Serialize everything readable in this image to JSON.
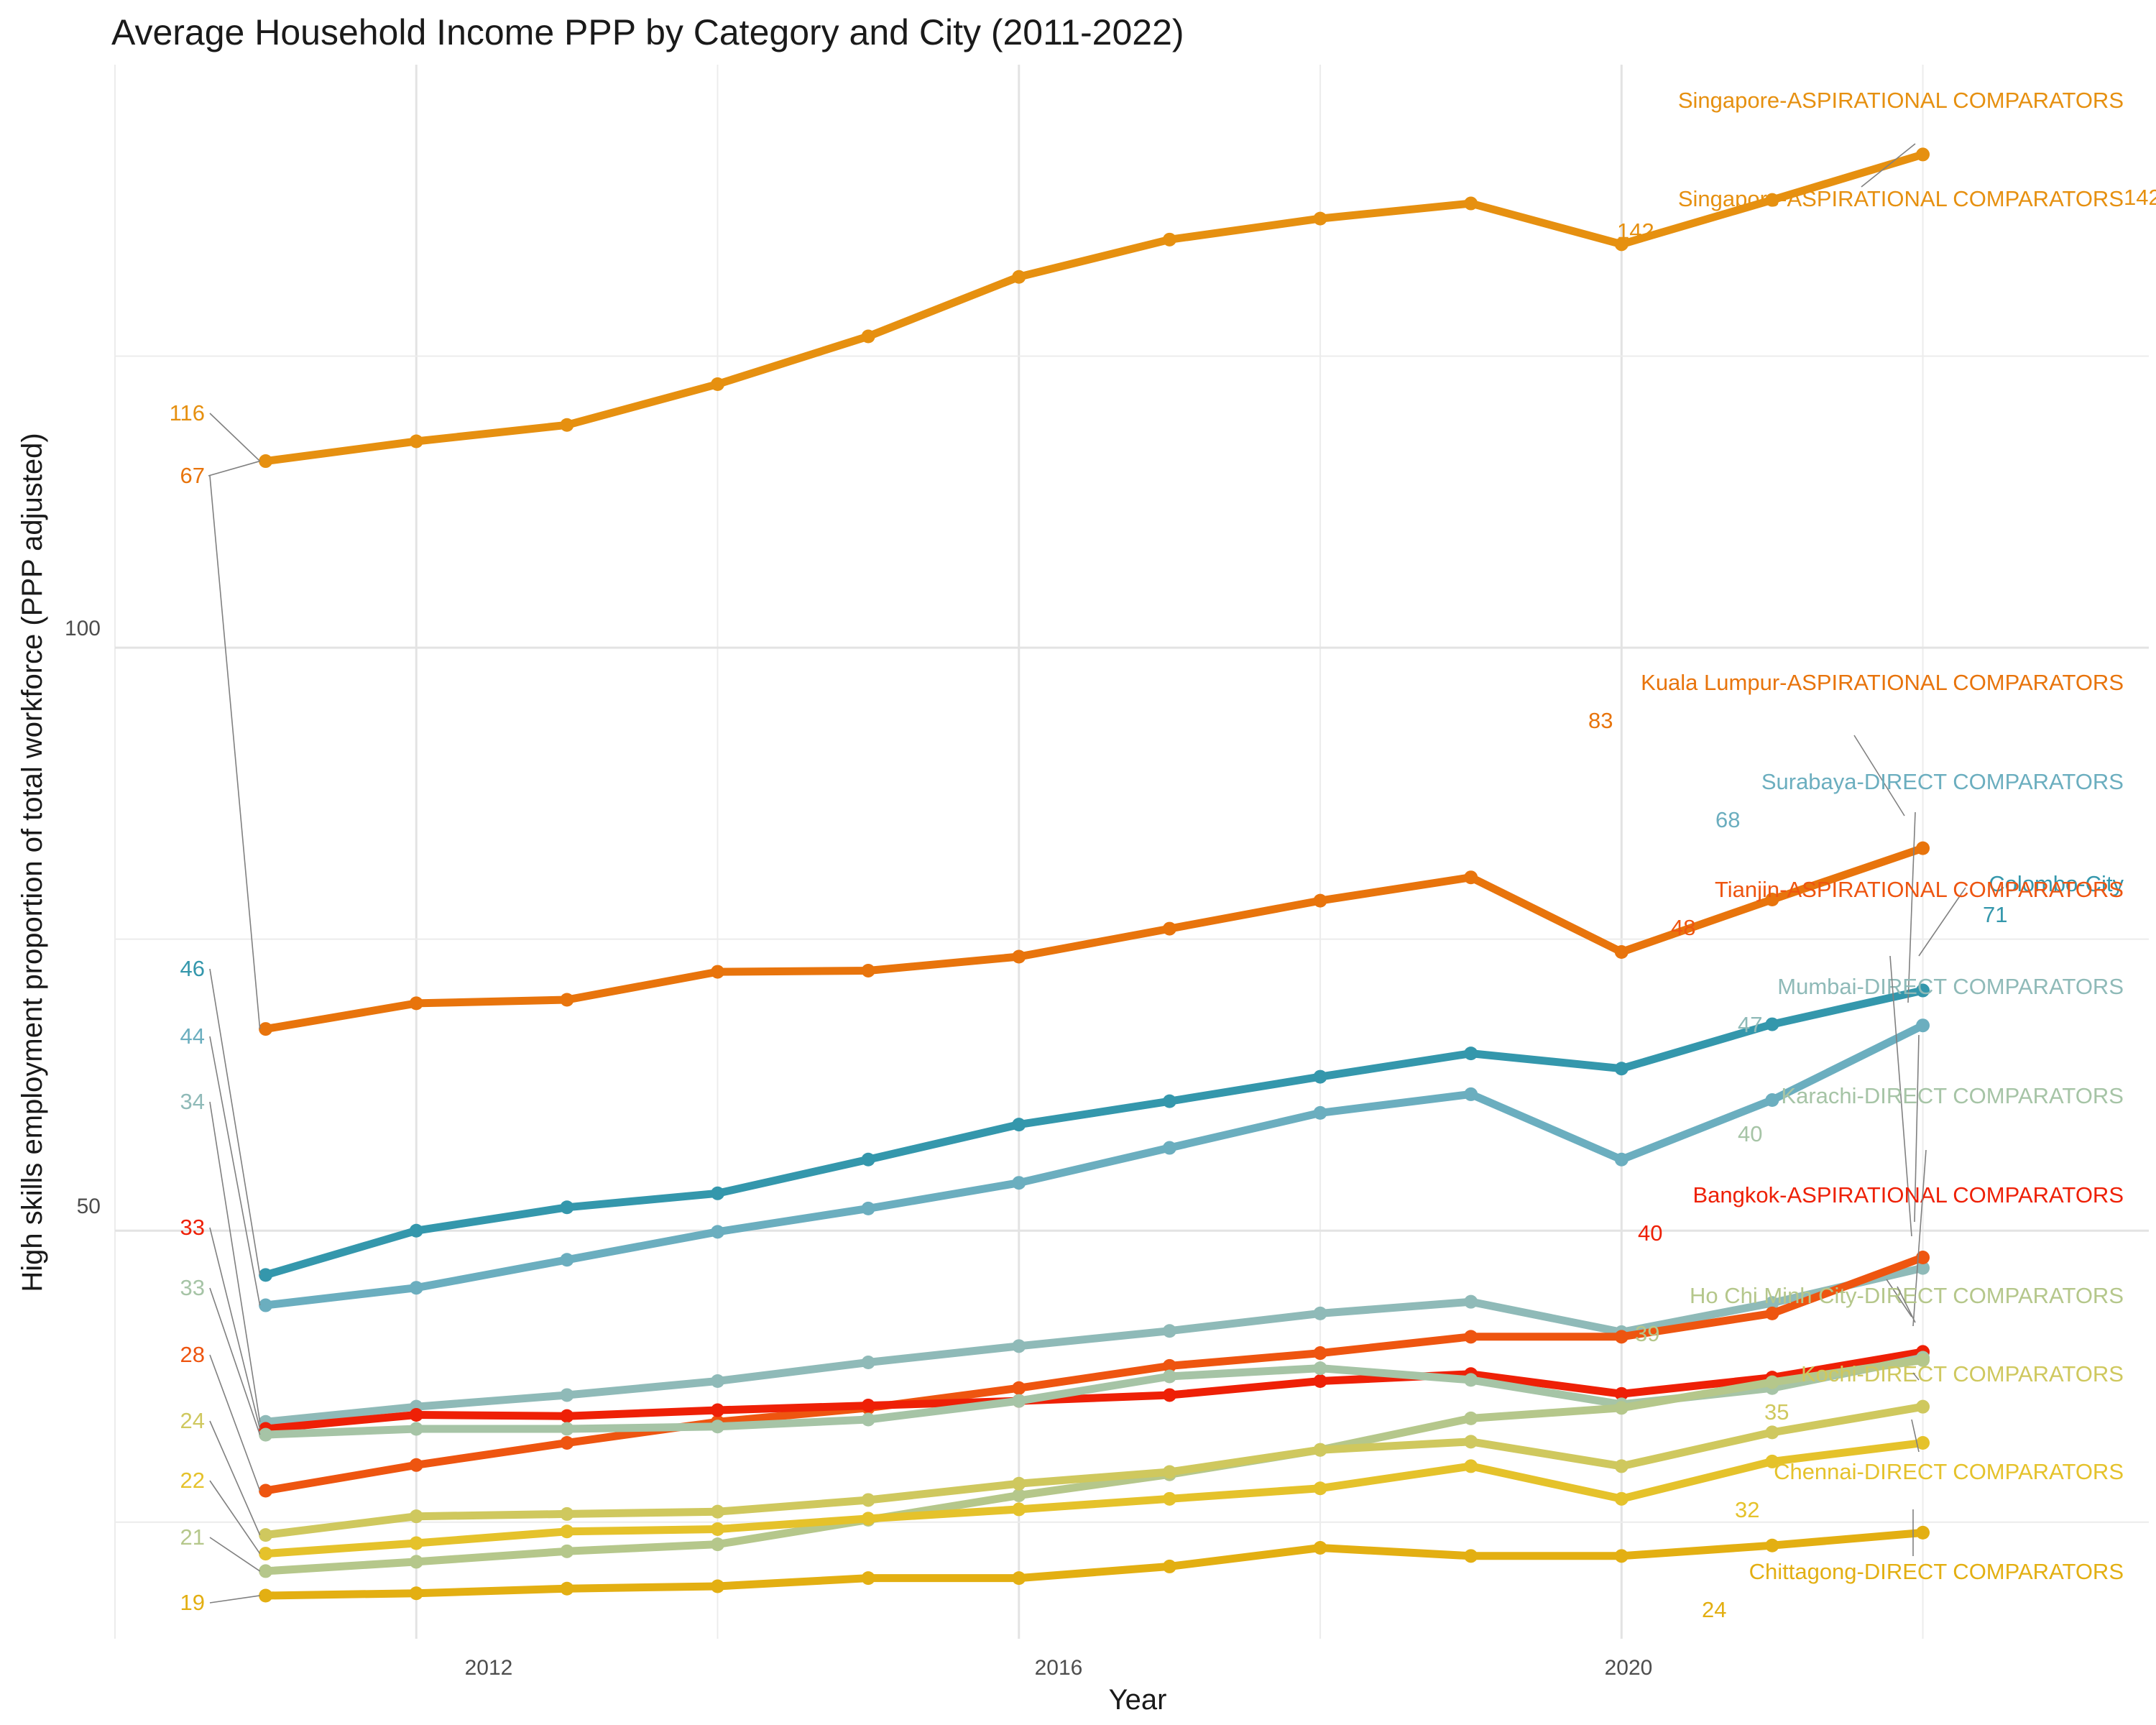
{
  "chart_data": {
    "type": "line",
    "title": "Average Household Income PPP by Category and City (2011-2022)",
    "xlabel": "Year",
    "ylabel": "High skills employment proportion of total workforce (PPP adjusted)",
    "x_ticks": [
      "2012",
      "2016",
      "2020"
    ],
    "y_ticks": [
      "50",
      "100"
    ],
    "xlim": [
      2010,
      2023.5
    ],
    "ylim": [
      15,
      150
    ],
    "grid": true,
    "legend": "none (direct labels)",
    "x": [
      2011,
      2012,
      2013,
      2014,
      2015,
      2016,
      2017,
      2018,
      2019,
      2020,
      2021,
      2022
    ],
    "series": [
      {
        "name": "Singapore-ASPIRATIONAL COMPARATORS",
        "color": "#E69010",
        "start_label": "116",
        "end_label": "142",
        "values": [
          116,
          117.7,
          119.1,
          122.6,
          126.7,
          131.8,
          135,
          136.8,
          138.1,
          134.6,
          138.4,
          142.3
        ]
      },
      {
        "name": "Kuala Lumpur-ASPIRATIONAL COMPARATORS",
        "color": "#E8740C",
        "start_label": "67",
        "end_label": "83",
        "values": [
          67.3,
          69.5,
          69.8,
          72.2,
          72.3,
          73.5,
          75.9,
          78.3,
          80.3,
          73.9,
          78.4,
          82.8
        ]
      },
      {
        "name": "Colombo-City",
        "color": "#3497AC",
        "start_label": "46",
        "end_label": "71",
        "values": [
          46.2,
          50,
          52,
          53.2,
          56.1,
          59.1,
          61.1,
          63.2,
          65.2,
          63.9,
          67.7,
          70.6
        ]
      },
      {
        "name": "Surabaya-DIRECT COMPARATORS",
        "color": "#6BAEBF",
        "start_label": "44",
        "end_label": "68",
        "values": [
          43.6,
          45.1,
          47.5,
          49.9,
          51.9,
          54.1,
          57.1,
          60.1,
          61.7,
          56.1,
          61.2,
          67.6
        ]
      },
      {
        "name": "Mumbai-DIRECT COMPARATORS",
        "color": "#8FBAB8",
        "start_label": "34",
        "end_label": "47",
        "values": [
          33.6,
          34.9,
          35.9,
          37.1,
          38.7,
          40.1,
          41.4,
          42.9,
          43.9,
          41.3,
          43.8,
          46.8
        ]
      },
      {
        "name": "Tianjin-ASPIRATIONAL COMPARATORS",
        "color": "#EE5510",
        "start_label": "28",
        "end_label": "48",
        "values": [
          27.7,
          29.9,
          31.8,
          33.6,
          34.8,
          36.5,
          38.4,
          39.5,
          40.9,
          40.9,
          42.9,
          47.7
        ]
      },
      {
        "name": "Bangkok-ASPIRATIONAL COMPARATORS",
        "color": "#EE2006",
        "start_label": "33",
        "end_label": "40",
        "values": [
          33,
          34.2,
          34.1,
          34.6,
          35,
          35.4,
          35.9,
          37.1,
          37.7,
          36,
          37.4,
          39.6
        ]
      },
      {
        "name": "Karachi-DIRECT COMPARATORS",
        "color": "#A6C4A6",
        "start_label": "33",
        "end_label": "40",
        "values": [
          32.5,
          33,
          33,
          33.2,
          33.8,
          35.4,
          37.5,
          38.2,
          37.2,
          35.1,
          36.5,
          39.1
        ]
      },
      {
        "name": "Ho Chi Minh City-DIRECT COMPARATORS",
        "color": "#B5C78B",
        "start_label": "21",
        "end_label": "39",
        "values": [
          20.8,
          21.6,
          22.5,
          23.1,
          25.2,
          27.3,
          29.1,
          31.2,
          33.9,
          34.8,
          37,
          38.9
        ]
      },
      {
        "name": "Kochi-DIRECT COMPARATORS",
        "color": "#CFC85E",
        "start_label": "24",
        "end_label": "35",
        "values": [
          23.9,
          25.5,
          25.7,
          25.9,
          26.9,
          28.3,
          29.3,
          31.2,
          31.9,
          29.8,
          32.7,
          34.9
        ]
      },
      {
        "name": "Chennai-DIRECT COMPARATORS",
        "color": "#E5C22B",
        "start_label": "22",
        "end_label": "32",
        "values": [
          22.3,
          23.2,
          24.2,
          24.4,
          25.3,
          26.1,
          27,
          27.9,
          29.8,
          27,
          30.2,
          31.8
        ]
      },
      {
        "name": "Chittagong-DIRECT COMPARATORS",
        "color": "#E3AF12",
        "start_label": "19",
        "end_label": "24",
        "values": [
          18.7,
          18.9,
          19.3,
          19.5,
          20.2,
          20.2,
          21.2,
          22.8,
          22.1,
          22.1,
          23,
          24.1
        ]
      }
    ]
  }
}
